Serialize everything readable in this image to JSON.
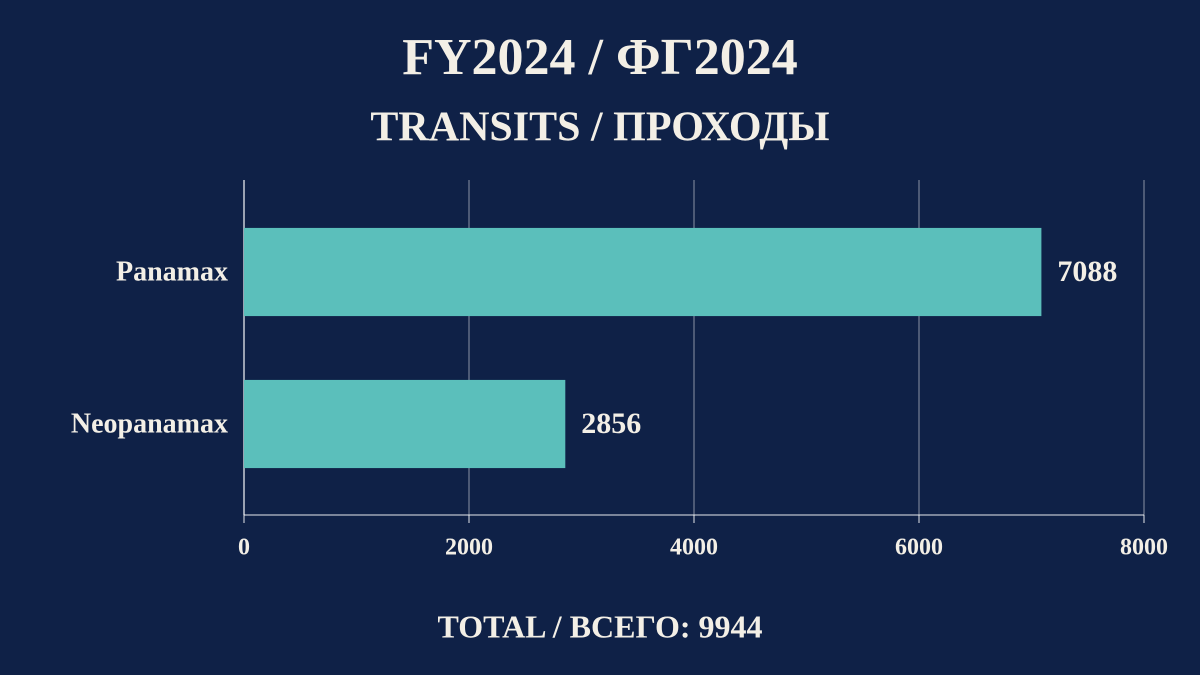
{
  "chart_data": {
    "type": "bar",
    "orientation": "horizontal",
    "title": "FY2024 / ФГ2024",
    "subtitle": "TRANSITS / ПРОХОДЫ",
    "categories": [
      "Panamax",
      "Neopanamax"
    ],
    "values": [
      7088,
      2856
    ],
    "color": "#5bbfbb",
    "xlim": [
      0,
      8000
    ],
    "xticks": [
      0,
      2000,
      4000,
      6000,
      8000
    ],
    "grid": true,
    "annotation": "TOTAL / ВСЕГО: 9944"
  }
}
